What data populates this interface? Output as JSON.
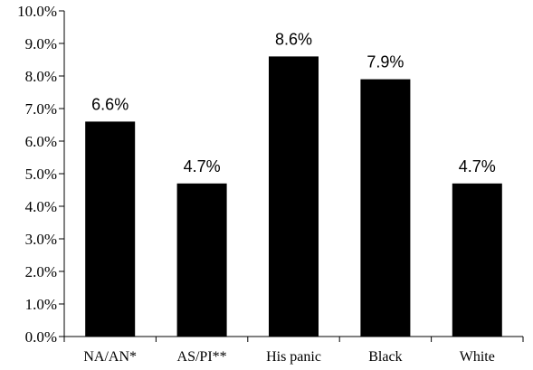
{
  "chart_data": {
    "type": "bar",
    "title": "",
    "xlabel": "",
    "ylabel": "",
    "categories": [
      "NA/AN*",
      "AS/PI**",
      "His panic",
      "Black",
      "White"
    ],
    "values": [
      6.6,
      4.7,
      8.6,
      7.9,
      4.7
    ],
    "data_labels": [
      "6.6%",
      "4.7%",
      "8.6%",
      "7.9%",
      "4.7%"
    ],
    "ylim": [
      0,
      10
    ],
    "y_ticks": [
      0,
      1,
      2,
      3,
      4,
      5,
      6,
      7,
      8,
      9,
      10
    ],
    "y_tick_labels": [
      "0.0%",
      "1.0%",
      "2.0%",
      "3.0%",
      "4.0%",
      "5.0%",
      "6.0%",
      "7.0%",
      "8.0%",
      "9.0%",
      "10.0%"
    ],
    "grid": false,
    "legend": "none",
    "bar_color": "#000000",
    "axis_color": "#000000"
  }
}
